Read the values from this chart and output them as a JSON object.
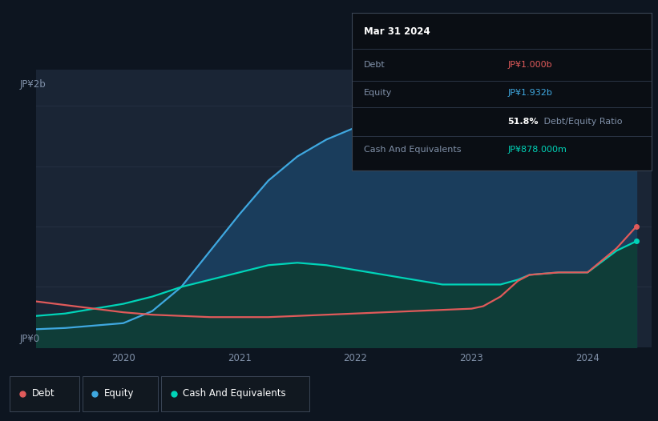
{
  "bg_color": "#0d1520",
  "chart_area_color": "#1a2535",
  "title_date": "Mar 31 2024",
  "tooltip": {
    "debt_label": "Debt",
    "debt_value": "JP¥1.000b",
    "equity_label": "Equity",
    "equity_value": "JP¥1.932b",
    "ratio_text": "51.8%",
    "ratio_suffix": " Debt/Equity Ratio",
    "cash_label": "Cash And Equivalents",
    "cash_value": "JP¥878.000m"
  },
  "y_label_top": "JP¥2b",
  "y_label_bottom": "JP¥0",
  "ylim": [
    0,
    2.3
  ],
  "xlim": [
    2019.25,
    2024.55
  ],
  "debt_color": "#e05a5a",
  "equity_color": "#3fa8e0",
  "cash_color": "#00d4b8",
  "equity_fill": "#1a3d5c",
  "cash_fill": "#0f3d38",
  "grid_color": "#253042",
  "time_points": [
    2019.25,
    2019.5,
    2019.75,
    2020.0,
    2020.25,
    2020.5,
    2020.75,
    2021.0,
    2021.25,
    2021.5,
    2021.75,
    2022.0,
    2022.25,
    2022.5,
    2022.75,
    2023.0,
    2023.1,
    2023.25,
    2023.4,
    2023.5,
    2023.75,
    2024.0,
    2024.25,
    2024.42
  ],
  "debt_values": [
    0.38,
    0.35,
    0.32,
    0.29,
    0.27,
    0.26,
    0.25,
    0.25,
    0.25,
    0.26,
    0.27,
    0.28,
    0.29,
    0.3,
    0.31,
    0.32,
    0.34,
    0.42,
    0.55,
    0.6,
    0.62,
    0.62,
    0.82,
    1.0
  ],
  "equity_values": [
    0.15,
    0.16,
    0.18,
    0.2,
    0.3,
    0.5,
    0.8,
    1.1,
    1.38,
    1.58,
    1.72,
    1.82,
    1.88,
    1.92,
    1.95,
    2.0,
    2.05,
    2.1,
    2.08,
    2.05,
    2.0,
    1.95,
    1.94,
    1.932
  ],
  "cash_values": [
    0.26,
    0.28,
    0.32,
    0.36,
    0.42,
    0.5,
    0.56,
    0.62,
    0.68,
    0.7,
    0.68,
    0.64,
    0.6,
    0.56,
    0.52,
    0.52,
    0.52,
    0.52,
    0.56,
    0.6,
    0.62,
    0.62,
    0.8,
    0.878
  ]
}
